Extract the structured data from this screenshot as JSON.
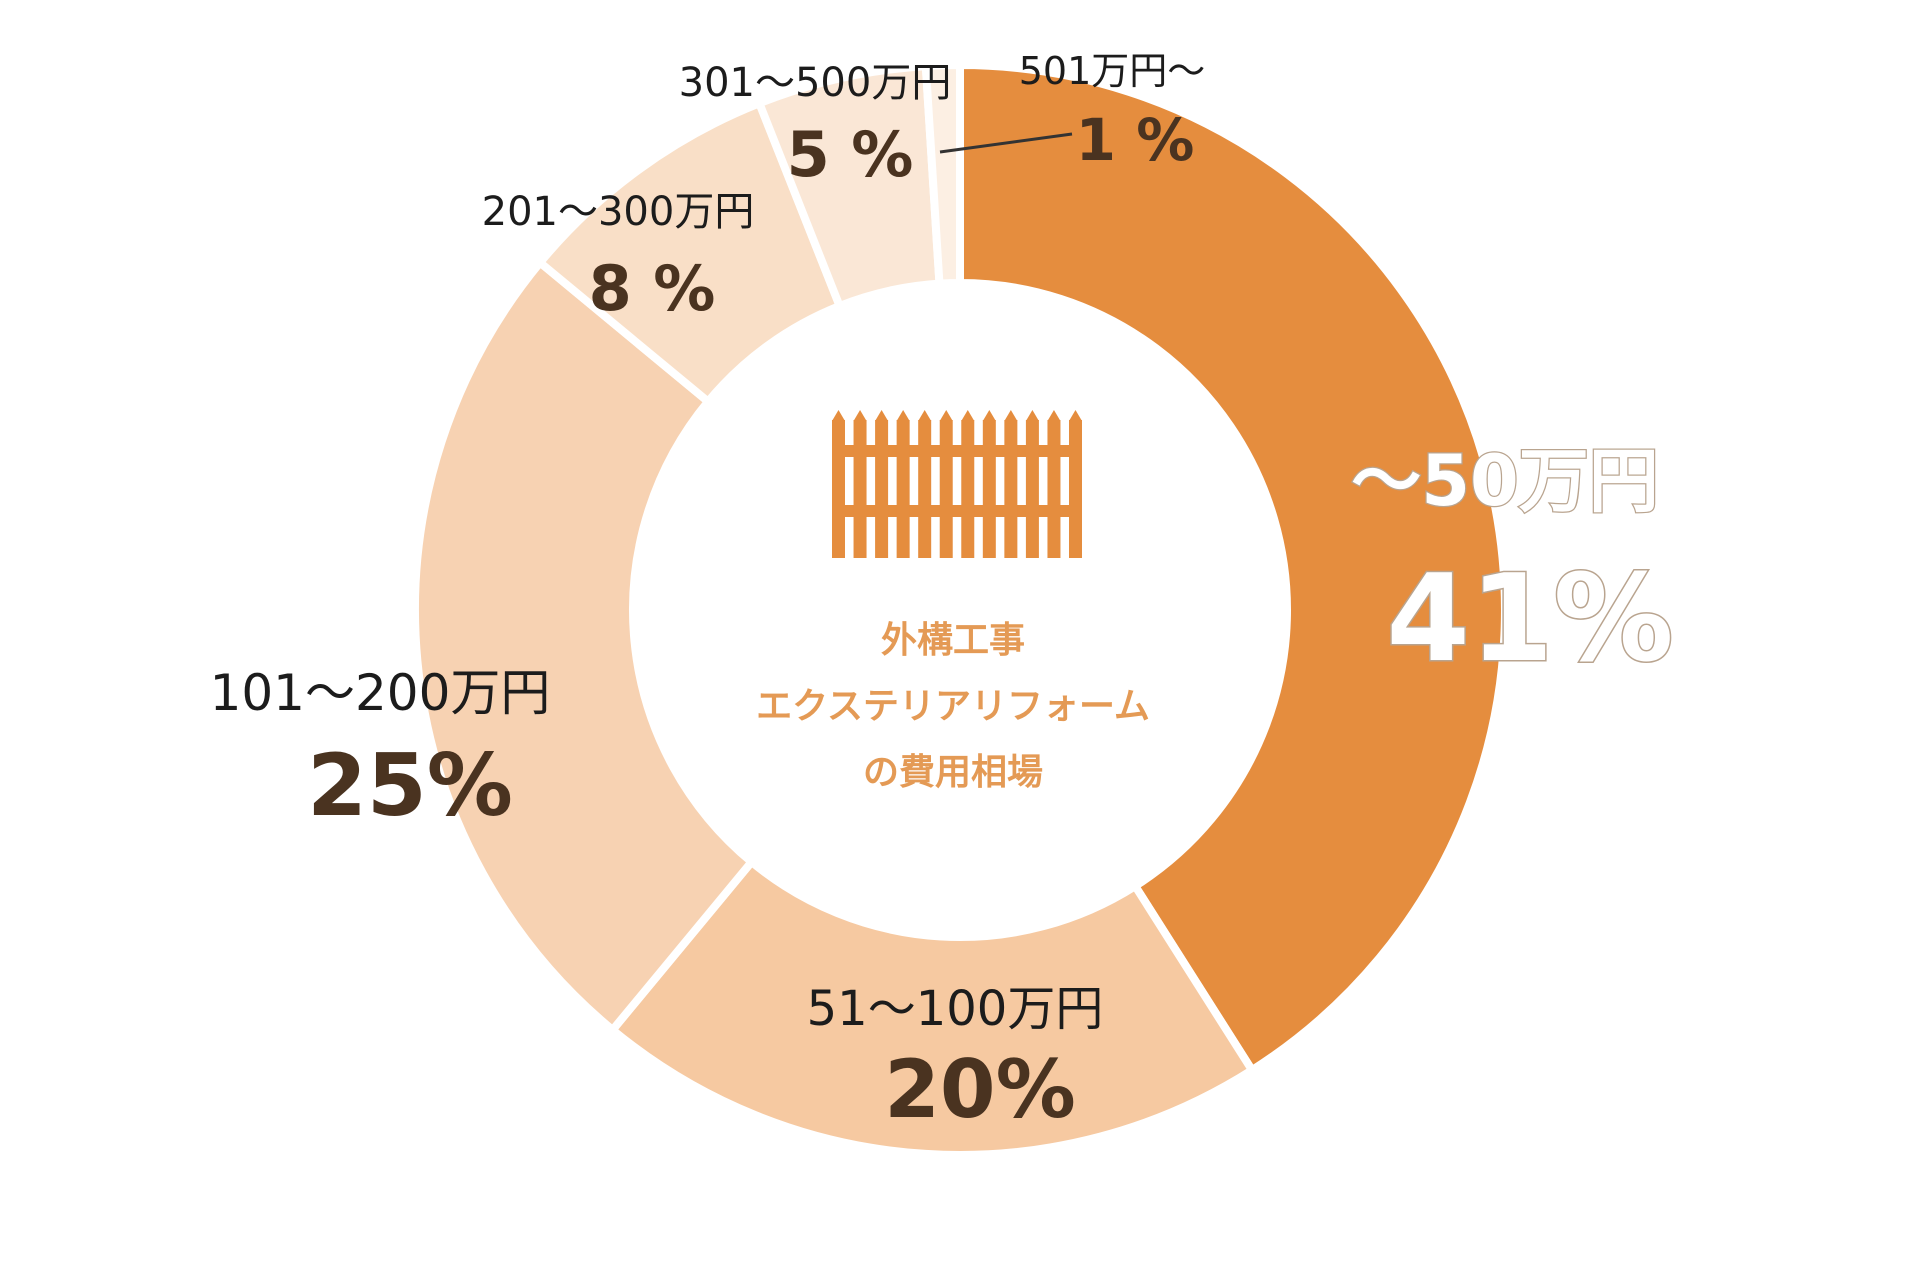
{
  "chart_data": {
    "type": "pie",
    "center_title": [
      "外構工事",
      "エクステリアリフォーム",
      "の費用相場"
    ],
    "center_icon": "fence-icon",
    "slices": [
      {
        "label": "～50万円",
        "percent_label": "41%",
        "value": 41,
        "color": "#e58d3e"
      },
      {
        "label": "51～100万円",
        "percent_label": "20%",
        "value": 20,
        "color": "#f6c9a1"
      },
      {
        "label": "101～200万円",
        "percent_label": "25%",
        "value": 25,
        "color": "#f7d2b2"
      },
      {
        "label": "201～300万円",
        "percent_label": "8 %",
        "value": 8,
        "color": "#f9dfc7"
      },
      {
        "label": "301～500万円",
        "percent_label": "5 %",
        "value": 5,
        "color": "#fae7d6"
      },
      {
        "label": "501万円～",
        "percent_label": "1 %",
        "value": 1,
        "color": "#fcefe3"
      }
    ]
  }
}
